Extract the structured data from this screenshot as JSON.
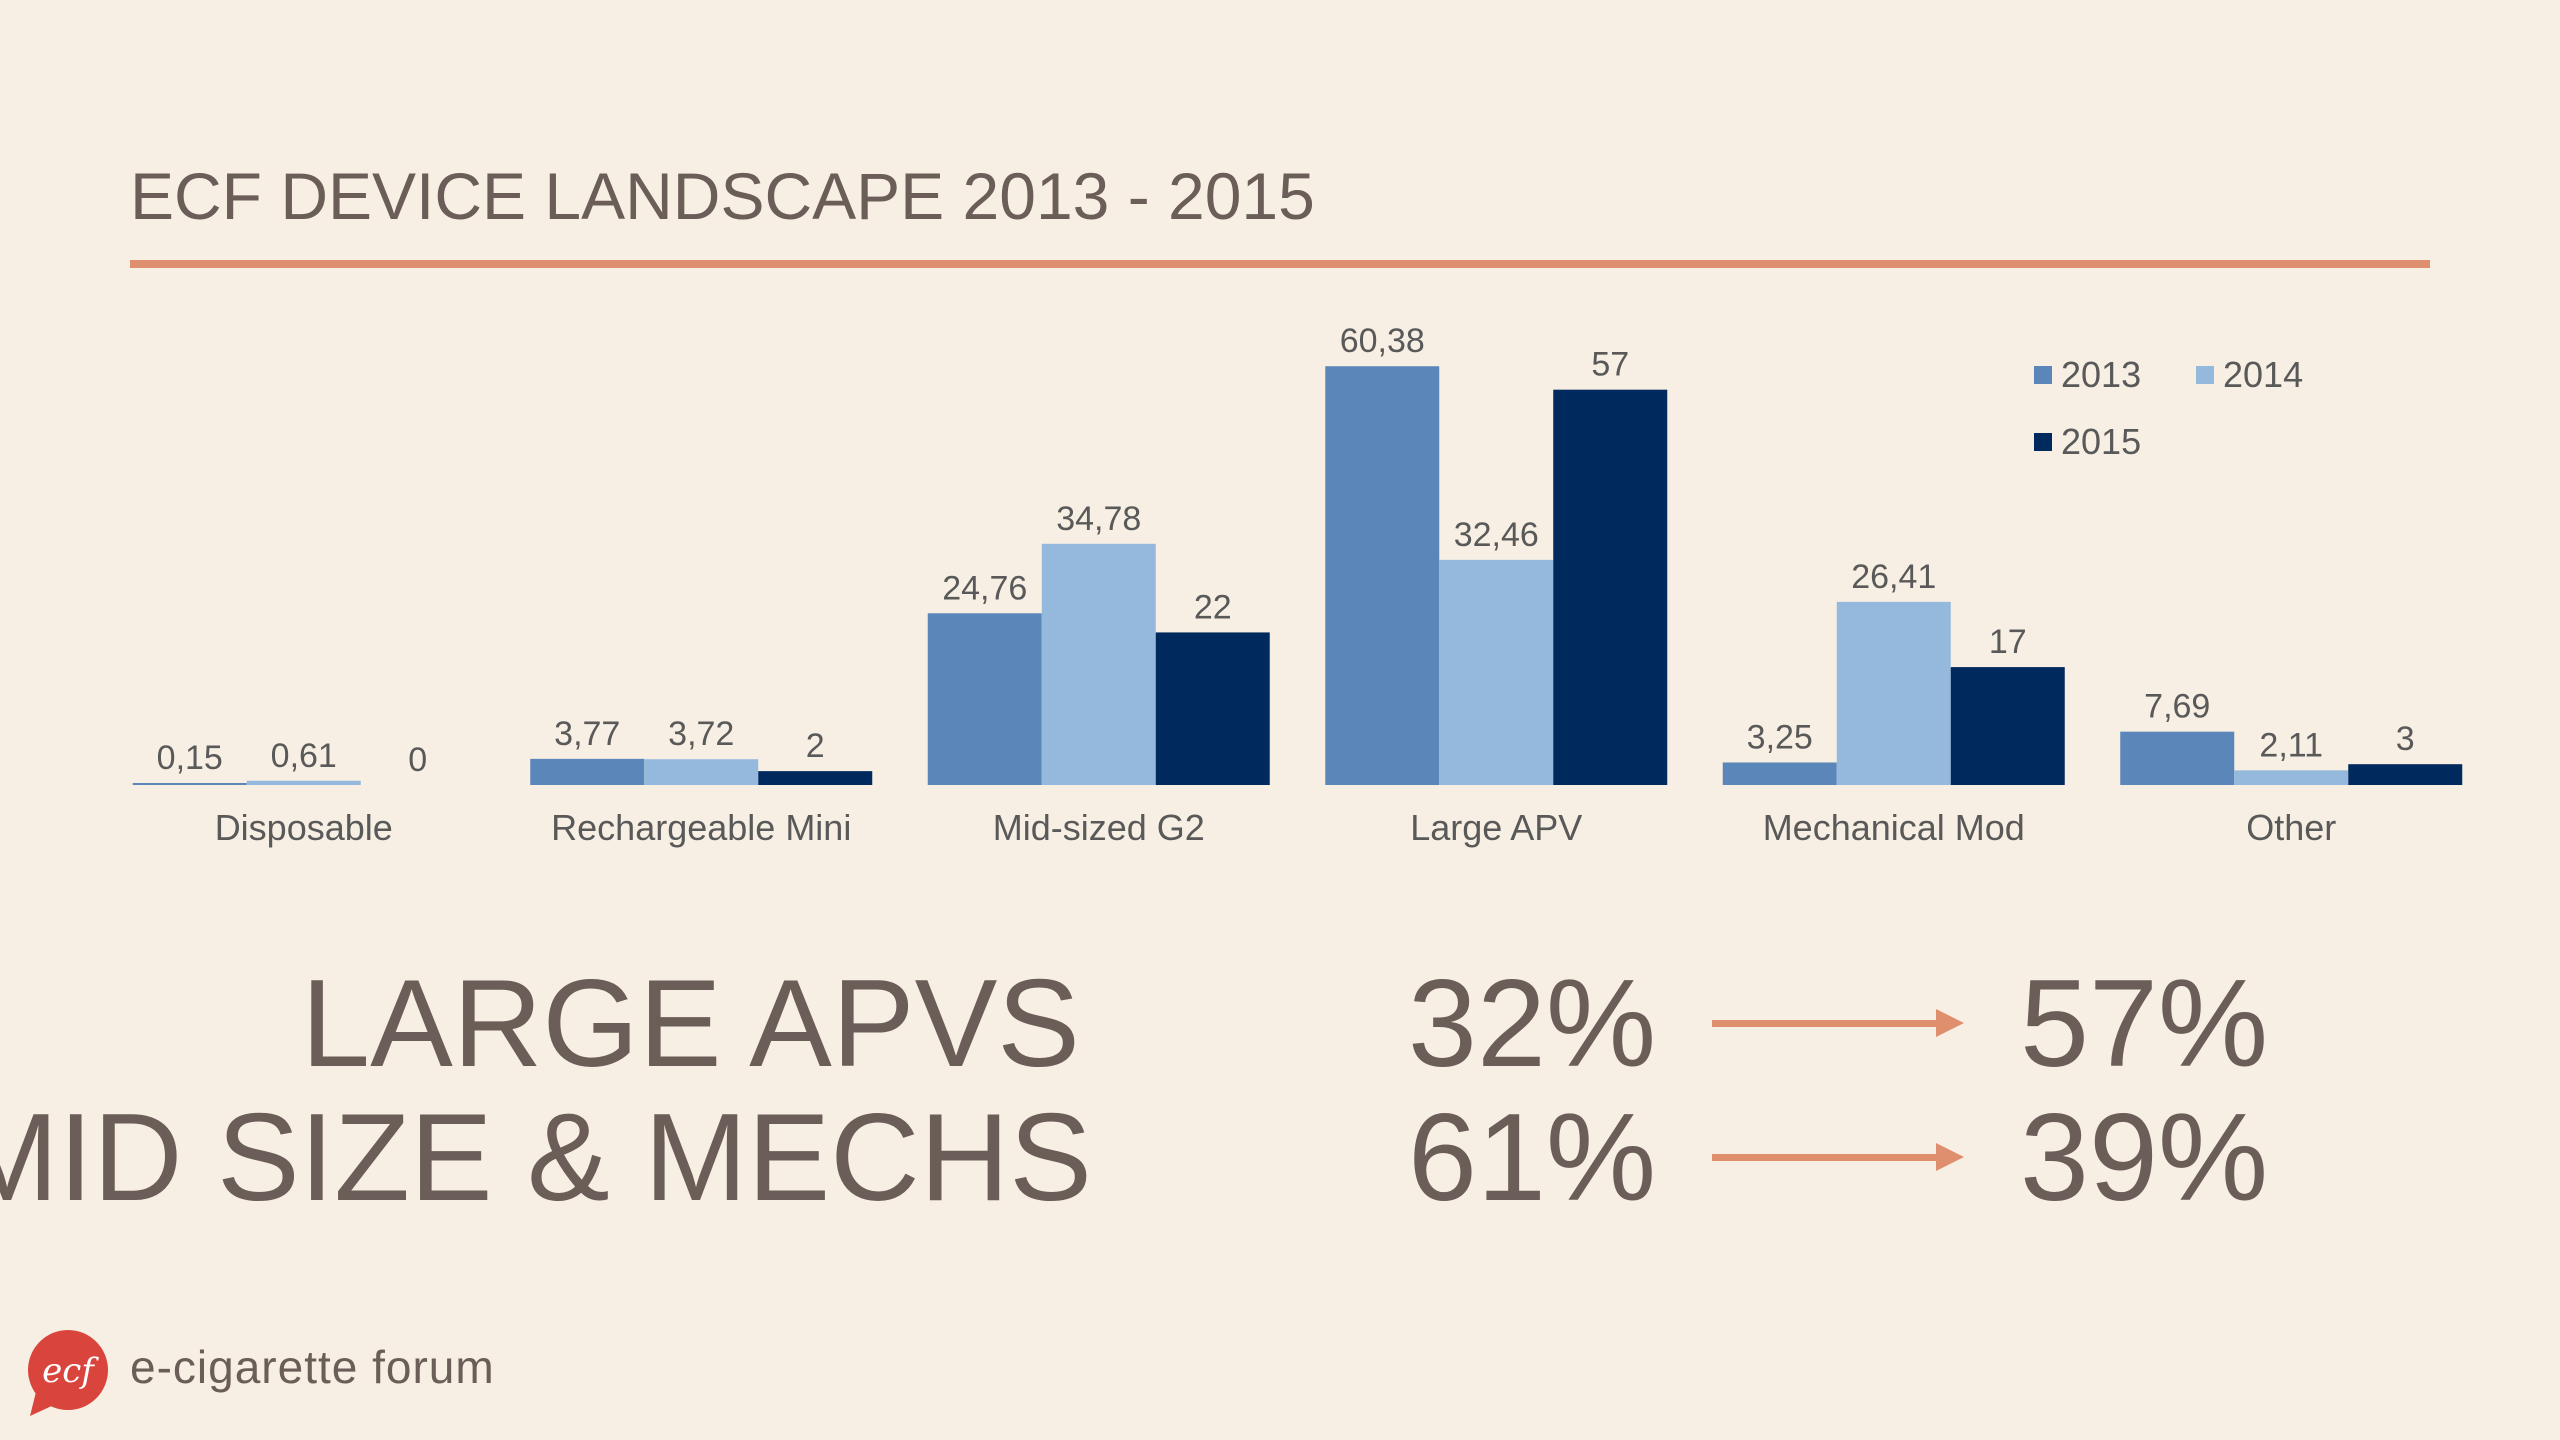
{
  "title": "ECF DEVICE LANDSCAPE 2013 - 2015",
  "chart_data": {
    "type": "bar",
    "categories": [
      "Disposable",
      "Rechargeable Mini",
      "Mid-sized G2",
      "Large APV",
      "Mechanical Mod",
      "Other"
    ],
    "series": [
      {
        "name": "2013",
        "values": [
          0.15,
          3.77,
          24.76,
          60.38,
          3.25,
          7.69
        ],
        "labels": [
          "0,15",
          "3,77",
          "24,76",
          "60,38",
          "3,25",
          "7,69"
        ],
        "color": "#5b86b9"
      },
      {
        "name": "2014",
        "values": [
          0.61,
          3.72,
          34.78,
          32.46,
          26.41,
          2.11
        ],
        "labels": [
          "0,61",
          "3,72",
          "34,78",
          "32,46",
          "26,41",
          "2,11"
        ],
        "color": "#95b9dd"
      },
      {
        "name": "2015",
        "values": [
          0,
          2,
          22,
          57,
          17,
          3
        ],
        "labels": [
          "0",
          "2",
          "22",
          "57",
          "17",
          "3"
        ],
        "color": "#002a5e"
      }
    ],
    "ylim": [
      0,
      62
    ],
    "grid": false,
    "legend": "top-right"
  },
  "stats": [
    {
      "label": "LARGE APVS",
      "from": "32%",
      "to": "57%"
    },
    {
      "label": "MID SIZE & MECHS",
      "from": "61%",
      "to": "39%"
    }
  ],
  "brand": {
    "logo_text": "ecf",
    "name": "e-cigarette forum",
    "logo_color": "#d9443c"
  }
}
